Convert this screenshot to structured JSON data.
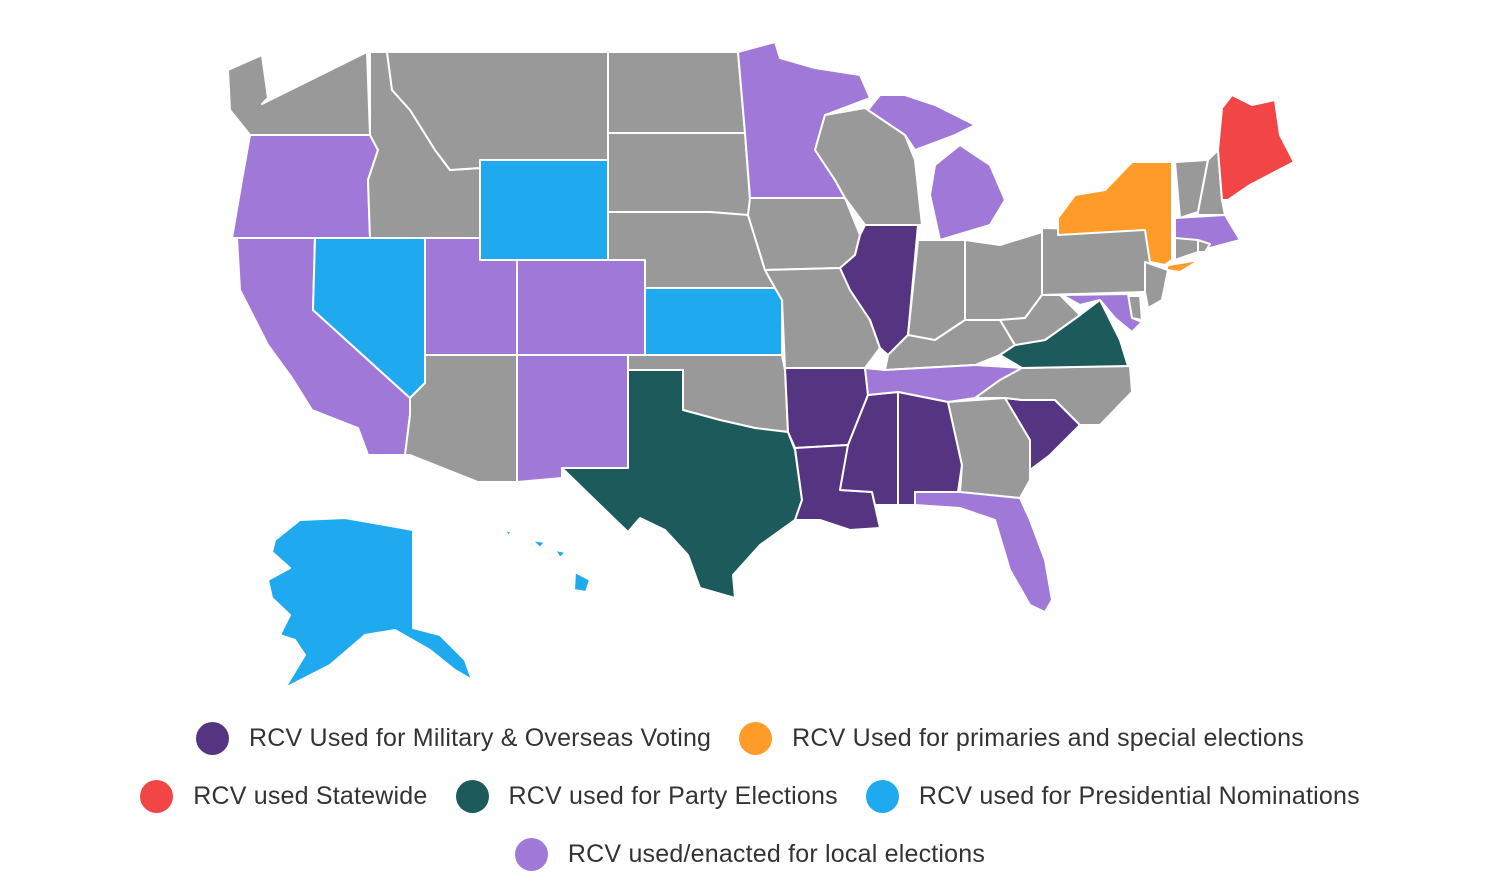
{
  "colors": {
    "military": "#553581",
    "primaries": "#FF9B29",
    "statewide": "#F24646",
    "party": "#1C5A5B",
    "presidential": "#1FAAF0",
    "local": "#A078D8",
    "none": "#999999"
  },
  "legend": [
    {
      "category": "military",
      "label": "RCV Used for Military & Overseas Voting",
      "row": 1
    },
    {
      "category": "primaries",
      "label": "RCV Used for primaries and special elections",
      "row": 1
    },
    {
      "category": "statewide",
      "label": "RCV used Statewide",
      "row": 2
    },
    {
      "category": "party",
      "label": "RCV used for Party Elections",
      "row": 2
    },
    {
      "category": "presidential",
      "label": "RCV used for Presidential Nominations",
      "row": 2
    },
    {
      "category": "local",
      "label": "RCV used/enacted for local elections",
      "row": 3
    }
  ],
  "states": {
    "WA": "none",
    "OR": "local",
    "CA": "local",
    "ID": "none",
    "NV": "presidential",
    "MT": "none",
    "WY": "presidential",
    "UT": "local",
    "AZ": "none",
    "CO": "local",
    "NM": "local",
    "ND": "none",
    "SD": "none",
    "NE": "none",
    "KS": "presidential",
    "OK": "none",
    "TX": "party",
    "MN": "local",
    "IA": "none",
    "MO": "none",
    "AR": "military",
    "LA": "military",
    "WI": "none",
    "IL": "military",
    "MS": "military",
    "MI": "local",
    "IN": "none",
    "KY": "none",
    "TN": "local",
    "AL": "military",
    "OH": "none",
    "GA": "none",
    "FL": "local",
    "SC": "military",
    "NC": "none",
    "VA": "party",
    "WV": "none",
    "PA": "none",
    "NY": "primaries",
    "VT": "none",
    "NH": "none",
    "ME": "statewide",
    "MA": "local",
    "RI": "none",
    "CT": "none",
    "NJ": "none",
    "DE": "none",
    "MD": "local",
    "AK": "presidential",
    "HI": "presidential"
  }
}
